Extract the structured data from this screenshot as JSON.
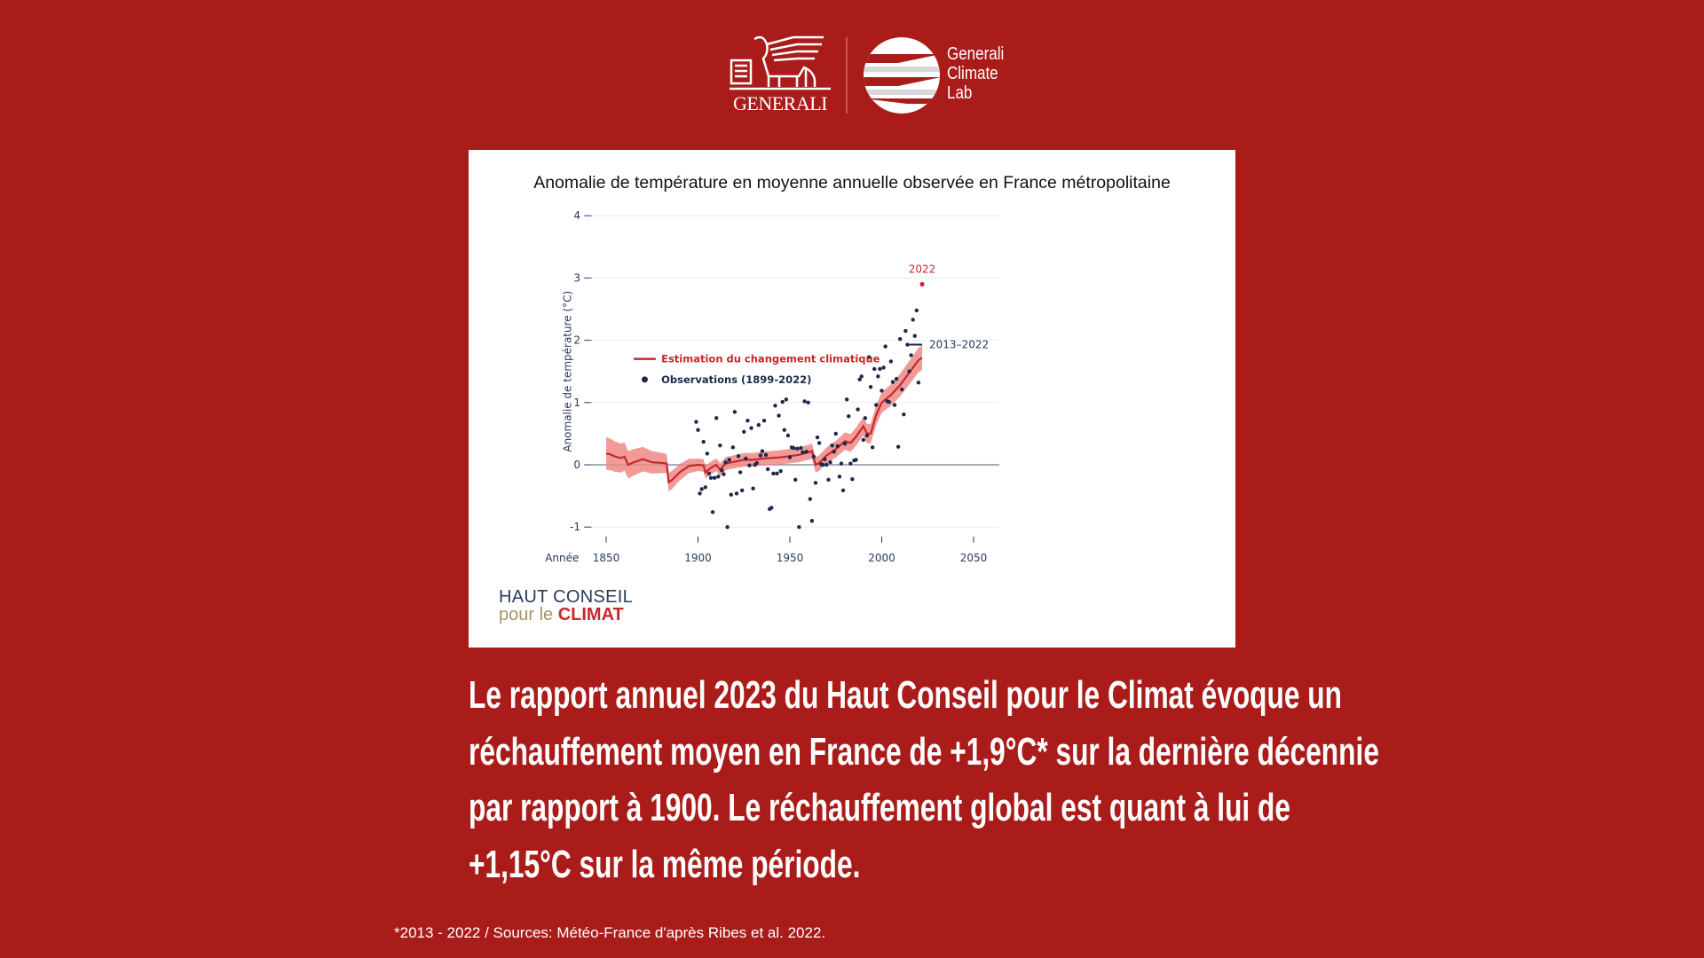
{
  "header": {
    "generali_wordmark": "GENERALI",
    "climate_lab": [
      "Generali",
      "Climate",
      "Lab"
    ]
  },
  "chart_data": {
    "type": "scatter",
    "title": "Anomalie de température en moyenne annuelle observée en France métropolitaine",
    "xlabel": "Année",
    "ylabel": "Anomalie de température (°C)",
    "xlim": [
      1850,
      2050
    ],
    "ylim": [
      -1,
      4
    ],
    "xticks": [
      1850,
      1900,
      1950,
      2000,
      2050
    ],
    "yticks": [
      -1,
      0,
      1,
      2,
      3,
      4
    ],
    "grid": true,
    "legend": {
      "position": "center-left",
      "entries": [
        "Estimation du changement climatique",
        "Observations (1899-2022)"
      ]
    },
    "colors": {
      "trend": "#c8282a",
      "band": "#ee8a86",
      "observations": "#1c2a4a",
      "highlight": "#c8282a",
      "axis": "#2a3a5c"
    },
    "annotations": {
      "highlight_label": "2022",
      "highlight_point": [
        2022,
        2.9
      ],
      "mean_label": "2013–2022",
      "mean_period": [
        2013,
        2022
      ],
      "mean_value": 1.93
    },
    "trend": [
      [
        1850,
        0.18
      ],
      [
        1852,
        0.17
      ],
      [
        1855,
        0.13
      ],
      [
        1858,
        0.11
      ],
      [
        1860,
        0.13
      ],
      [
        1862,
        0.0
      ],
      [
        1865,
        0.04
      ],
      [
        1870,
        0.09
      ],
      [
        1875,
        0.04
      ],
      [
        1880,
        0.03
      ],
      [
        1883,
        0.02
      ],
      [
        1884,
        -0.28
      ],
      [
        1886,
        -0.24
      ],
      [
        1890,
        -0.12
      ],
      [
        1895,
        -0.02
      ],
      [
        1900,
        0.0
      ],
      [
        1903,
        -0.01
      ],
      [
        1904,
        -0.12
      ],
      [
        1907,
        -0.05
      ],
      [
        1910,
        0.0
      ],
      [
        1912,
        -0.08
      ],
      [
        1915,
        0.02
      ],
      [
        1920,
        0.05
      ],
      [
        1925,
        0.08
      ],
      [
        1930,
        0.08
      ],
      [
        1935,
        0.1
      ],
      [
        1940,
        0.11
      ],
      [
        1945,
        0.12
      ],
      [
        1950,
        0.14
      ],
      [
        1955,
        0.16
      ],
      [
        1960,
        0.2
      ],
      [
        1962,
        0.22
      ],
      [
        1964,
        0.0
      ],
      [
        1966,
        0.03
      ],
      [
        1970,
        0.15
      ],
      [
        1975,
        0.25
      ],
      [
        1980,
        0.38
      ],
      [
        1983,
        0.35
      ],
      [
        1986,
        0.45
      ],
      [
        1990,
        0.62
      ],
      [
        1992,
        0.5
      ],
      [
        1994,
        0.5
      ],
      [
        1997,
        0.8
      ],
      [
        2000,
        1.0
      ],
      [
        2005,
        1.12
      ],
      [
        2010,
        1.28
      ],
      [
        2015,
        1.48
      ],
      [
        2020,
        1.68
      ],
      [
        2022,
        1.72
      ]
    ],
    "band_halfwidth": [
      [
        1850,
        0.26
      ],
      [
        1900,
        0.1
      ],
      [
        1960,
        0.12
      ],
      [
        1990,
        0.15
      ],
      [
        2022,
        0.2
      ]
    ],
    "observations": [
      [
        1899,
        0.69
      ],
      [
        1900,
        0.56
      ],
      [
        1901,
        -0.46
      ],
      [
        1902,
        -0.39
      ],
      [
        1903,
        0.37
      ],
      [
        1904,
        -0.36
      ],
      [
        1905,
        0.18
      ],
      [
        1906,
        -0.14
      ],
      [
        1907,
        -0.21
      ],
      [
        1908,
        -0.76
      ],
      [
        1909,
        -0.21
      ],
      [
        1910,
        0.75
      ],
      [
        1911,
        -0.19
      ],
      [
        1912,
        0.31
      ],
      [
        1913,
        -0.09
      ],
      [
        1914,
        -0.15
      ],
      [
        1915,
        0.04
      ],
      [
        1916,
        -1.0
      ],
      [
        1917,
        0.08
      ],
      [
        1918,
        -0.48
      ],
      [
        1919,
        0.28
      ],
      [
        1920,
        0.85
      ],
      [
        1921,
        -0.46
      ],
      [
        1922,
        0.14
      ],
      [
        1923,
        -0.12
      ],
      [
        1924,
        -0.41
      ],
      [
        1925,
        0.53
      ],
      [
        1926,
        0.1
      ],
      [
        1927,
        0.71
      ],
      [
        1928,
        -0.01
      ],
      [
        1929,
        0.59
      ],
      [
        1930,
        -0.38
      ],
      [
        1931,
        0.0
      ],
      [
        1932,
        0.03
      ],
      [
        1933,
        0.64
      ],
      [
        1934,
        0.15
      ],
      [
        1935,
        0.22
      ],
      [
        1936,
        0.71
      ],
      [
        1937,
        0.16
      ],
      [
        1938,
        -0.07
      ],
      [
        1939,
        -0.71
      ],
      [
        1940,
        -0.69
      ],
      [
        1941,
        -0.14
      ],
      [
        1942,
        0.95
      ],
      [
        1943,
        -0.14
      ],
      [
        1944,
        0.79
      ],
      [
        1945,
        -0.1
      ],
      [
        1946,
        1.01
      ],
      [
        1947,
        0.56
      ],
      [
        1948,
        1.05
      ],
      [
        1949,
        0.47
      ],
      [
        1950,
        0.12
      ],
      [
        1951,
        0.28
      ],
      [
        1952,
        0.27
      ],
      [
        1953,
        -0.24
      ],
      [
        1954,
        0.26
      ],
      [
        1955,
        -1.0
      ],
      [
        1956,
        0.27
      ],
      [
        1957,
        0.2
      ],
      [
        1958,
        1.02
      ],
      [
        1959,
        0.21
      ],
      [
        1960,
        1.0
      ],
      [
        1961,
        -0.55
      ],
      [
        1962,
        -0.9
      ],
      [
        1963,
        0.13
      ],
      [
        1964,
        -0.29
      ],
      [
        1965,
        0.44
      ],
      [
        1966,
        0.35
      ],
      [
        1967,
        0.01
      ],
      [
        1968,
        0.0
      ],
      [
        1969,
        0.09
      ],
      [
        1970,
        0.0
      ],
      [
        1971,
        -0.24
      ],
      [
        1972,
        0.04
      ],
      [
        1973,
        0.31
      ],
      [
        1974,
        0.21
      ],
      [
        1975,
        0.5
      ],
      [
        1976,
        0.3
      ],
      [
        1977,
        -0.19
      ],
      [
        1978,
        0.02
      ],
      [
        1979,
        -0.41
      ],
      [
        1980,
        0.34
      ],
      [
        1981,
        1.05
      ],
      [
        1982,
        0.78
      ],
      [
        1983,
        0.02
      ],
      [
        1984,
        -0.23
      ],
      [
        1985,
        0.07
      ],
      [
        1986,
        0.08
      ],
      [
        1987,
        0.89
      ],
      [
        1988,
        1.37
      ],
      [
        1989,
        1.42
      ],
      [
        1990,
        0.4
      ],
      [
        1991,
        0.75
      ],
      [
        1992,
        0.47
      ],
      [
        1993,
        1.73
      ],
      [
        1994,
        1.25
      ],
      [
        1995,
        0.28
      ],
      [
        1996,
        1.54
      ],
      [
        1997,
        0.96
      ],
      [
        1998,
        1.42
      ],
      [
        1999,
        1.54
      ],
      [
        2000,
        1.19
      ],
      [
        2001,
        1.56
      ],
      [
        2002,
        1.9
      ],
      [
        2003,
        1.02
      ],
      [
        2004,
        1.01
      ],
      [
        2005,
        1.66
      ],
      [
        2006,
        1.33
      ],
      [
        2007,
        0.96
      ],
      [
        2008,
        1.38
      ],
      [
        2009,
        0.29
      ],
      [
        2010,
        2.02
      ],
      [
        2011,
        1.21
      ],
      [
        2012,
        0.81
      ],
      [
        2013,
        2.15
      ],
      [
        2014,
        1.93
      ],
      [
        2015,
        1.5
      ],
      [
        2016,
        1.76
      ],
      [
        2017,
        2.33
      ],
      [
        2018,
        2.07
      ],
      [
        2019,
        2.48
      ],
      [
        2020,
        1.32
      ],
      [
        2022,
        2.9
      ]
    ]
  },
  "hcc_logo": {
    "line1": "HAUT CONSEIL",
    "line2a": "pour le ",
    "line2b": "CLIMAT"
  },
  "body": {
    "lines": [
      "Le rapport annuel 2023 du Haut Conseil pour le Climat évoque un",
      "réchauffement moyen en France de +1,9°C* sur la dernière décennie",
      "par rapport à 1900. Le réchauffement global est quant à lui de",
      "+1,15°C sur la même période."
    ]
  },
  "footnote": "*2013 - 2022 / Sources: Météo-France d'après Ribes et al. 2022."
}
